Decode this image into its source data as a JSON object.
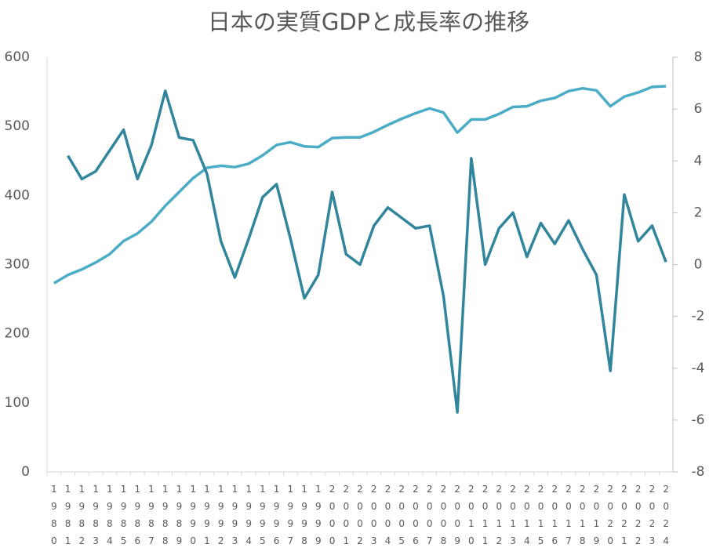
{
  "chart_data": {
    "type": "line",
    "title": "日本の実質GDPと成長率の推移",
    "categories": [
      "1980",
      "1981",
      "1982",
      "1983",
      "1984",
      "1985",
      "1986",
      "1987",
      "1988",
      "1989",
      "1990",
      "1991",
      "1992",
      "1993",
      "1994",
      "1995",
      "1996",
      "1997",
      "1998",
      "1999",
      "2000",
      "2001",
      "2002",
      "2003",
      "2004",
      "2005",
      "2006",
      "2007",
      "2008",
      "2009",
      "2010",
      "2011",
      "2012",
      "2013",
      "2014",
      "2015",
      "2016",
      "2017",
      "2018",
      "2019",
      "2020",
      "2021",
      "2022",
      "2023",
      "2024"
    ],
    "series": [
      {
        "color": "#4bacc6",
        "values": [
          273,
          285,
          293,
          303,
          315,
          334,
          345,
          362,
          385,
          405,
          425,
          440,
          443,
          441,
          446,
          458,
          473,
          477,
          471,
          470,
          483,
          484,
          484,
          492,
          502,
          511,
          519,
          526,
          520,
          491,
          510,
          510,
          518,
          528,
          529,
          537,
          541,
          551,
          555,
          552,
          529,
          543,
          549,
          557,
          558
        ]
      },
      {
        "color": "#31859c",
        "axis": "y2",
        "values": [
          null,
          4.2,
          3.3,
          3.6,
          4.4,
          5.2,
          3.3,
          4.6,
          6.7,
          4.9,
          4.8,
          3.5,
          0.9,
          -0.5,
          1.0,
          2.6,
          3.1,
          1.0,
          -1.3,
          -0.4,
          2.8,
          0.4,
          0.0,
          1.5,
          2.2,
          1.8,
          1.4,
          1.5,
          -1.2,
          -5.7,
          4.1,
          0.0,
          1.4,
          2.0,
          0.3,
          1.6,
          0.8,
          1.7,
          0.6,
          -0.4,
          -4.1,
          2.7,
          0.9,
          1.5,
          0.1
        ]
      }
    ],
    "ylim": [
      0,
      600
    ],
    "yticks": [
      0,
      100,
      200,
      300,
      400,
      500,
      600
    ],
    "y2lim": [
      -8,
      8
    ],
    "y2ticks": [
      -8,
      -6,
      -4,
      -2,
      0,
      2,
      4,
      6,
      8
    ],
    "grid": false
  }
}
